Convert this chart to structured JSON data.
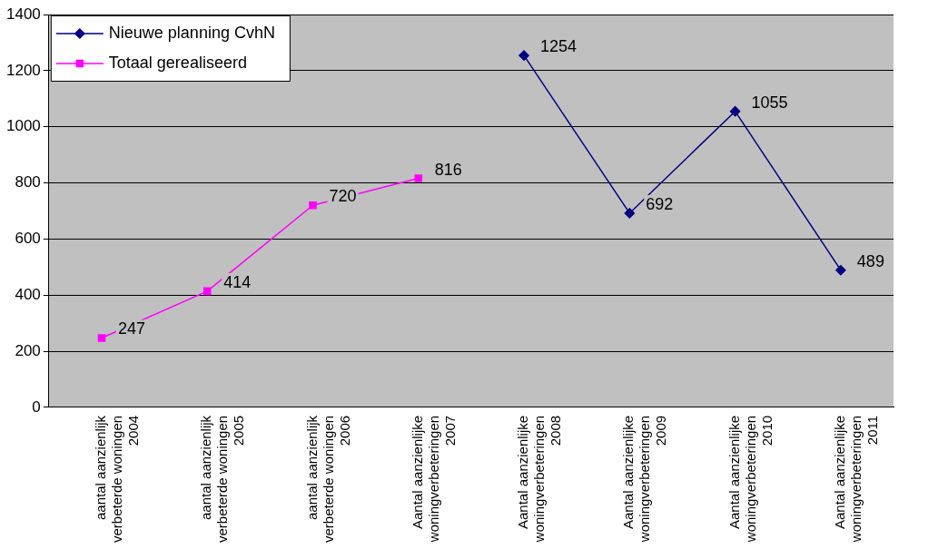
{
  "chart_data": {
    "type": "line",
    "categories": [
      "aantal aanzienlijk verbeterde woningen 2004",
      "aantal aanzienlijk verbeterde woningen 2005",
      "aantal aanzienlijk verbeterde woningen 2006",
      "Aantal aanzienlijke woningverbeteringen 2007",
      "Aantal aanzienlijke woningverbeteringen 2008",
      "Aantal aanzienlijke woningverbeteringen 2009",
      "Aantal aanzienlijke woningverbeteringen 2010",
      "Aantal aanzienlijke woningverbeteringen 2011"
    ],
    "series": [
      {
        "name": "Nieuwe planning CvhN",
        "color": "#000080",
        "marker": "diamond",
        "values": [
          null,
          null,
          null,
          null,
          1254,
          692,
          1055,
          489
        ]
      },
      {
        "name": "Totaal gerealiseerd",
        "color": "#ff00ff",
        "marker": "square",
        "values": [
          247,
          414,
          720,
          816,
          null,
          null,
          null,
          null
        ]
      }
    ],
    "ylim": [
      0,
      1400
    ],
    "yticks": [
      0,
      200,
      400,
      600,
      800,
      1000,
      1200,
      1400
    ],
    "grid": "y",
    "legend": "top left",
    "data_labels": true,
    "line_style": "solid"
  }
}
